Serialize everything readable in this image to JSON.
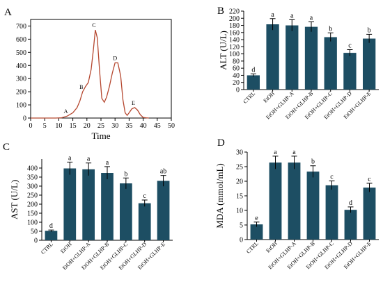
{
  "colors": {
    "bar": "#1d4e63",
    "line": "#b5472f",
    "axis": "#000000"
  },
  "chart_data": [
    {
      "panel": "A",
      "type": "line",
      "xlabel": "Time",
      "ylabel": "",
      "xlim": [
        0,
        50
      ],
      "ylim": [
        0,
        750
      ],
      "xticks": [
        0,
        5,
        10,
        15,
        20,
        25,
        30,
        35,
        40,
        45,
        50
      ],
      "yticks": [
        0,
        100,
        200,
        300,
        400,
        500,
        600,
        700
      ],
      "series": [
        {
          "x": [
            0,
            9,
            11,
            13,
            15,
            16.5,
            17.5,
            18.5,
            19.5,
            20.5,
            21.5,
            22.3,
            23,
            23.7,
            24.5,
            25.3,
            26.2,
            27,
            28,
            29,
            30,
            31,
            32,
            32.8,
            33.6,
            34.3,
            35,
            36,
            37,
            38,
            39,
            40,
            41,
            42
          ],
          "y": [
            0,
            0,
            2,
            15,
            40,
            80,
            130,
            200,
            240,
            270,
            370,
            520,
            670,
            610,
            360,
            150,
            120,
            160,
            240,
            340,
            420,
            420,
            320,
            140,
            40,
            20,
            40,
            70,
            80,
            60,
            25,
            5,
            2,
            0
          ]
        }
      ],
      "peaks": [
        {
          "label": "A",
          "x": 13,
          "y": 15
        },
        {
          "label": "B",
          "x": 18.5,
          "y": 200
        },
        {
          "label": "C",
          "x": 23,
          "y": 670
        },
        {
          "label": "D",
          "x": 30.5,
          "y": 420
        },
        {
          "label": "E",
          "x": 37,
          "y": 80
        }
      ]
    },
    {
      "panel": "B",
      "type": "bar",
      "ylabel": "ALT (U/L)",
      "ylim": [
        0,
        220
      ],
      "yticks": [
        0,
        20,
        40,
        60,
        80,
        100,
        120,
        140,
        160,
        180,
        200,
        220
      ],
      "categories": [
        "CTRL",
        "EtOH",
        "EtOH+GLHP-A",
        "EtOH+GLHP-B",
        "EtOH+GLHP-C",
        "EtOH+GLHP-D",
        "EtOH+GLHP-E"
      ],
      "values": [
        40,
        183,
        180,
        176,
        147,
        103,
        143
      ],
      "errors": [
        4,
        16,
        16,
        14,
        12,
        9,
        12
      ],
      "labels": [
        "d",
        "a",
        "a",
        "a",
        "b",
        "c",
        "b"
      ]
    },
    {
      "panel": "C",
      "type": "bar",
      "ylabel": "AST (U/L)",
      "ylim": [
        0,
        450
      ],
      "yticks": [
        0,
        50,
        100,
        150,
        200,
        250,
        300,
        350,
        400
      ],
      "categories": [
        "CTRL",
        "EtOH",
        "EtOH+GLHP-A",
        "EtOH+GLHP-B",
        "EtOH+GLHP-C",
        "EtOH+GLHP-D",
        "EtOH+GLHP-E"
      ],
      "values": [
        52,
        398,
        393,
        373,
        315,
        205,
        329
      ],
      "errors": [
        5,
        35,
        35,
        35,
        30,
        18,
        30
      ],
      "labels": [
        "d",
        "a",
        "a",
        "a",
        "b",
        "c",
        "ab"
      ]
    },
    {
      "panel": "D",
      "type": "bar",
      "ylabel": "MDA (mmol/mL)",
      "ylim": [
        0,
        30
      ],
      "yticks": [
        0,
        5,
        10,
        15,
        20,
        25,
        30
      ],
      "categories": [
        "CTRL",
        "EtOH",
        "EtOH+GLHP-A",
        "EtOH+GLHP-B",
        "EtOH+GLHP-C",
        "EtOH+GLHP-D",
        "EtOH+GLHP-E"
      ],
      "values": [
        5.2,
        26.4,
        26.4,
        23.3,
        18.6,
        10.2,
        17.8
      ],
      "errors": [
        0.8,
        2.2,
        2.2,
        2.0,
        1.5,
        1.0,
        1.5
      ],
      "labels": [
        "e",
        "a",
        "a",
        "b",
        "c",
        "d",
        "c"
      ]
    }
  ]
}
